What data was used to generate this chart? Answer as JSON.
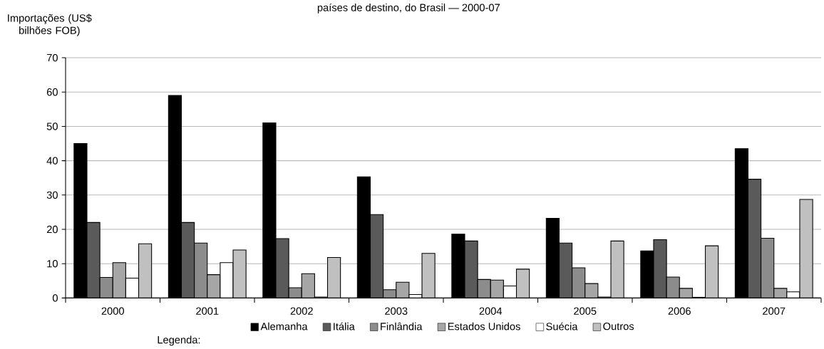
{
  "chart_data": {
    "type": "bar",
    "title": "países de destino, do Brasil — 2000-07",
    "ylabel": "Importações (US$ bilhões FOB)",
    "legend_title": "Legenda:",
    "categories": [
      "2000",
      "2001",
      "2002",
      "2003",
      "2004",
      "2005",
      "2006",
      "2007"
    ],
    "series": [
      {
        "name": "Alemanha",
        "color": "#000000",
        "values": [
          45,
          59,
          51,
          35.3,
          18.6,
          23.2,
          13.7,
          43.5
        ]
      },
      {
        "name": "Itália",
        "color": "#5a5a5a",
        "values": [
          22,
          22,
          17.3,
          24.3,
          16.6,
          16,
          17,
          34.6
        ]
      },
      {
        "name": "Finlândia",
        "color": "#8c8c8c",
        "values": [
          6,
          16,
          3,
          2.4,
          5.4,
          8.8,
          6.1,
          17.4
        ]
      },
      {
        "name": "Estados Unidos",
        "color": "#a6a6a6",
        "values": [
          10.3,
          6.8,
          7.1,
          4.6,
          5.2,
          4.2,
          2.8,
          2.8
        ]
      },
      {
        "name": "Suécia",
        "color": "#ffffff",
        "values": [
          5.8,
          10.3,
          0.3,
          1,
          3.5,
          0.3,
          0.2,
          1.8
        ]
      },
      {
        "name": "Outros",
        "color": "#c0c0c0",
        "values": [
          15.8,
          14,
          11.8,
          13,
          8.4,
          16.6,
          15.2,
          28.7
        ]
      }
    ],
    "ylim": [
      0,
      70
    ],
    "yticks": [
      0,
      10,
      20,
      30,
      40,
      50,
      60,
      70
    ],
    "grid": "y",
    "legend": "bottom"
  }
}
